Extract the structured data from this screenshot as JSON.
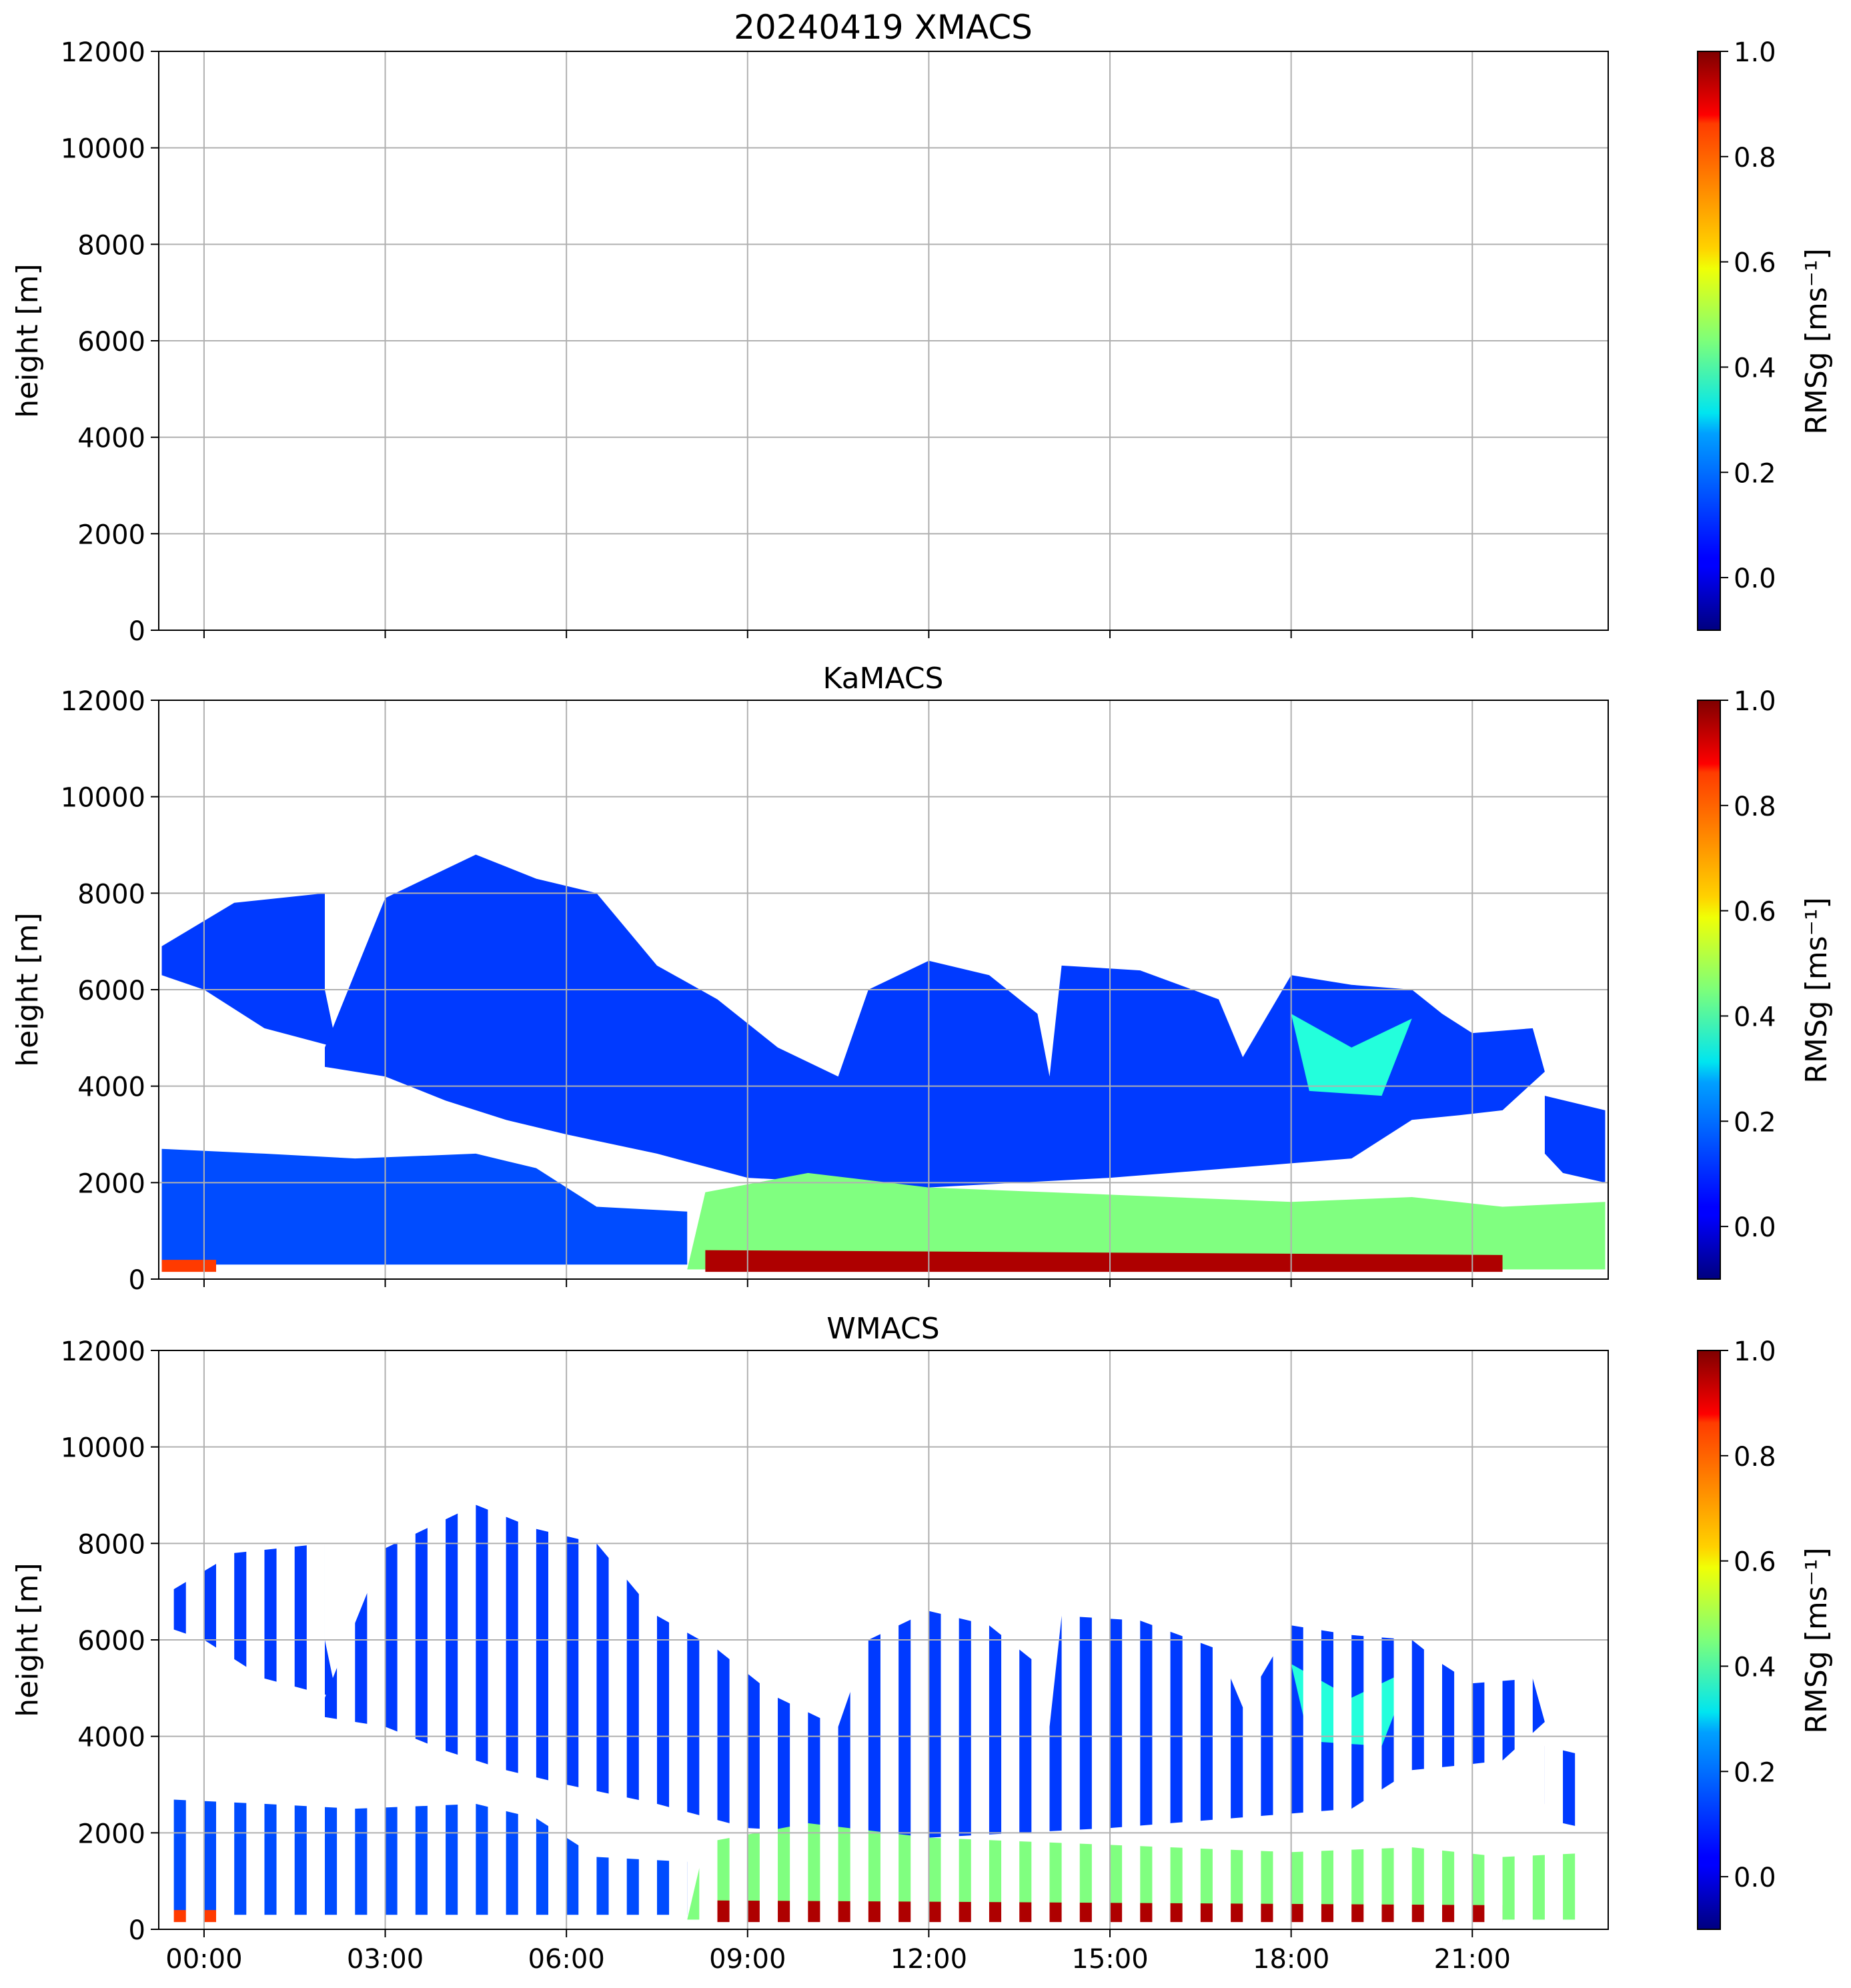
{
  "figure_title": "20240419 XMACS",
  "chart_data": [
    {
      "type": "heatmap",
      "name": "XMACS",
      "title": "20240419 XMACS",
      "ylabel": "height [m]",
      "ylim": [
        0,
        12000
      ],
      "yticks": [
        0,
        2000,
        4000,
        6000,
        8000,
        10000,
        12000
      ],
      "xlim_hours": [
        -0.75,
        23.25
      ],
      "xticks": [
        "00:00",
        "03:00",
        "06:00",
        "09:00",
        "12:00",
        "15:00",
        "18:00",
        "21:00"
      ],
      "grid": true,
      "data": "no data (empty panel)",
      "colorbar": {
        "label": "RMSg [ms⁻¹]",
        "range": [
          -0.1,
          1.0
        ],
        "ticks": [
          "0.0",
          "0.2",
          "0.4",
          "0.6",
          "0.8",
          "1.0"
        ]
      },
      "cloud_regions": []
    },
    {
      "type": "heatmap",
      "name": "KaMACS",
      "title": "KaMACS",
      "ylabel": "height [m]",
      "ylim": [
        0,
        12000
      ],
      "yticks": [
        0,
        2000,
        4000,
        6000,
        8000,
        10000,
        12000
      ],
      "xlim_hours": [
        -0.75,
        23.25
      ],
      "xticks": [
        "00:00",
        "03:00",
        "06:00",
        "09:00",
        "12:00",
        "15:00",
        "18:00",
        "21:00"
      ],
      "grid": true,
      "colorbar": {
        "label": "RMSg [ms⁻¹]",
        "range": [
          -0.1,
          1.0
        ],
        "ticks": [
          "0.0",
          "0.2",
          "0.4",
          "0.6",
          "0.8",
          "1.0"
        ]
      },
      "cloud_regions": [
        {
          "layer": "upper",
          "rmsg": 0.1,
          "points": [
            [
              -0.7,
              6900
            ],
            [
              0.5,
              7800
            ],
            [
              2.0,
              8000
            ],
            [
              2.0,
              6000
            ],
            [
              2.2,
              4800
            ],
            [
              1.0,
              5200
            ],
            [
              0.0,
              6000
            ],
            [
              -0.7,
              6300
            ]
          ]
        },
        {
          "layer": "upper",
          "rmsg": 0.1,
          "points": [
            [
              2.0,
              4800
            ],
            [
              3.0,
              7900
            ],
            [
              4.5,
              8800
            ],
            [
              5.5,
              8300
            ],
            [
              6.5,
              8000
            ],
            [
              7.5,
              6500
            ],
            [
              8.5,
              5800
            ],
            [
              9.5,
              4800
            ],
            [
              10.5,
              4200
            ],
            [
              11.0,
              6000
            ],
            [
              12.0,
              6600
            ],
            [
              13.0,
              6300
            ],
            [
              13.8,
              5500
            ],
            [
              14.0,
              4200
            ],
            [
              14.2,
              6500
            ],
            [
              15.5,
              6400
            ],
            [
              16.8,
              5800
            ],
            [
              17.2,
              4600
            ],
            [
              18.0,
              6300
            ],
            [
              19.0,
              6100
            ],
            [
              20.0,
              6000
            ],
            [
              20.5,
              5500
            ],
            [
              21.0,
              5100
            ],
            [
              22.0,
              5200
            ],
            [
              22.2,
              4300
            ],
            [
              21.5,
              3500
            ],
            [
              20.8,
              3400
            ],
            [
              20.0,
              3300
            ],
            [
              19.0,
              2500
            ],
            [
              18.0,
              2400
            ],
            [
              17.0,
              2300
            ],
            [
              15.0,
              2100
            ],
            [
              12.0,
              1900
            ],
            [
              9.0,
              2100
            ],
            [
              7.5,
              2600
            ],
            [
              6.0,
              3000
            ],
            [
              5.0,
              3300
            ],
            [
              4.0,
              3700
            ],
            [
              3.0,
              4200
            ],
            [
              2.0,
              4400
            ]
          ]
        },
        {
          "layer": "upper",
          "rmsg": 0.1,
          "points": [
            [
              22.2,
              3800
            ],
            [
              23.2,
              3500
            ],
            [
              23.2,
              2000
            ],
            [
              22.5,
              2200
            ],
            [
              22.2,
              2600
            ]
          ]
        },
        {
          "layer": "low",
          "rmsg": 0.12,
          "points": [
            [
              -0.7,
              2700
            ],
            [
              1.0,
              2600
            ],
            [
              2.5,
              2500
            ],
            [
              4.5,
              2600
            ],
            [
              5.5,
              2300
            ],
            [
              6.5,
              1500
            ],
            [
              8.0,
              1400
            ],
            [
              8.0,
              300
            ],
            [
              -0.7,
              300
            ]
          ]
        },
        {
          "layer": "low",
          "rmsg": 0.45,
          "points": [
            [
              8.0,
              200
            ],
            [
              8.3,
              1800
            ],
            [
              10.0,
              2200
            ],
            [
              12.0,
              1900
            ],
            [
              14.0,
              1800
            ],
            [
              16.0,
              1700
            ],
            [
              18.0,
              1600
            ],
            [
              20.0,
              1700
            ],
            [
              21.5,
              1500
            ],
            [
              23.2,
              1600
            ],
            [
              23.2,
              200
            ]
          ]
        },
        {
          "layer": "surface",
          "rmsg": 0.95,
          "points": [
            [
              8.3,
              150
            ],
            [
              21.5,
              150
            ],
            [
              21.5,
              500
            ],
            [
              8.3,
              600
            ]
          ]
        },
        {
          "layer": "surface",
          "rmsg": 0.8,
          "points": [
            [
              -0.7,
              150
            ],
            [
              0.2,
              150
            ],
            [
              0.2,
              400
            ],
            [
              -0.7,
              400
            ]
          ]
        },
        {
          "layer": "embedded",
          "rmsg": 0.35,
          "points": [
            [
              18.0,
              5500
            ],
            [
              19.0,
              4800
            ],
            [
              20.0,
              5400
            ],
            [
              19.5,
              3800
            ],
            [
              18.3,
              3900
            ]
          ]
        }
      ]
    },
    {
      "type": "heatmap",
      "name": "WMACS",
      "title": "WMACS",
      "ylabel": "height [m]",
      "ylim": [
        0,
        12000
      ],
      "yticks": [
        0,
        2000,
        4000,
        6000,
        8000,
        10000,
        12000
      ],
      "xlim_hours": [
        -0.75,
        23.25
      ],
      "xticks": [
        "00:00",
        "03:00",
        "06:00",
        "09:00",
        "12:00",
        "15:00",
        "18:00",
        "21:00"
      ],
      "grid": true,
      "colorbar": {
        "label": "RMSg [ms⁻¹]",
        "range": [
          -0.1,
          1.0
        ],
        "ticks": [
          "0.0",
          "0.2",
          "0.4",
          "0.6",
          "0.8",
          "1.0"
        ]
      },
      "scan_interval_hours": 0.5,
      "scan_width_hours": 0.2,
      "scan_start_hour": -0.5,
      "scan_count": 47,
      "cloud_regions": "same as KaMACS, sampled in scan columns"
    }
  ]
}
